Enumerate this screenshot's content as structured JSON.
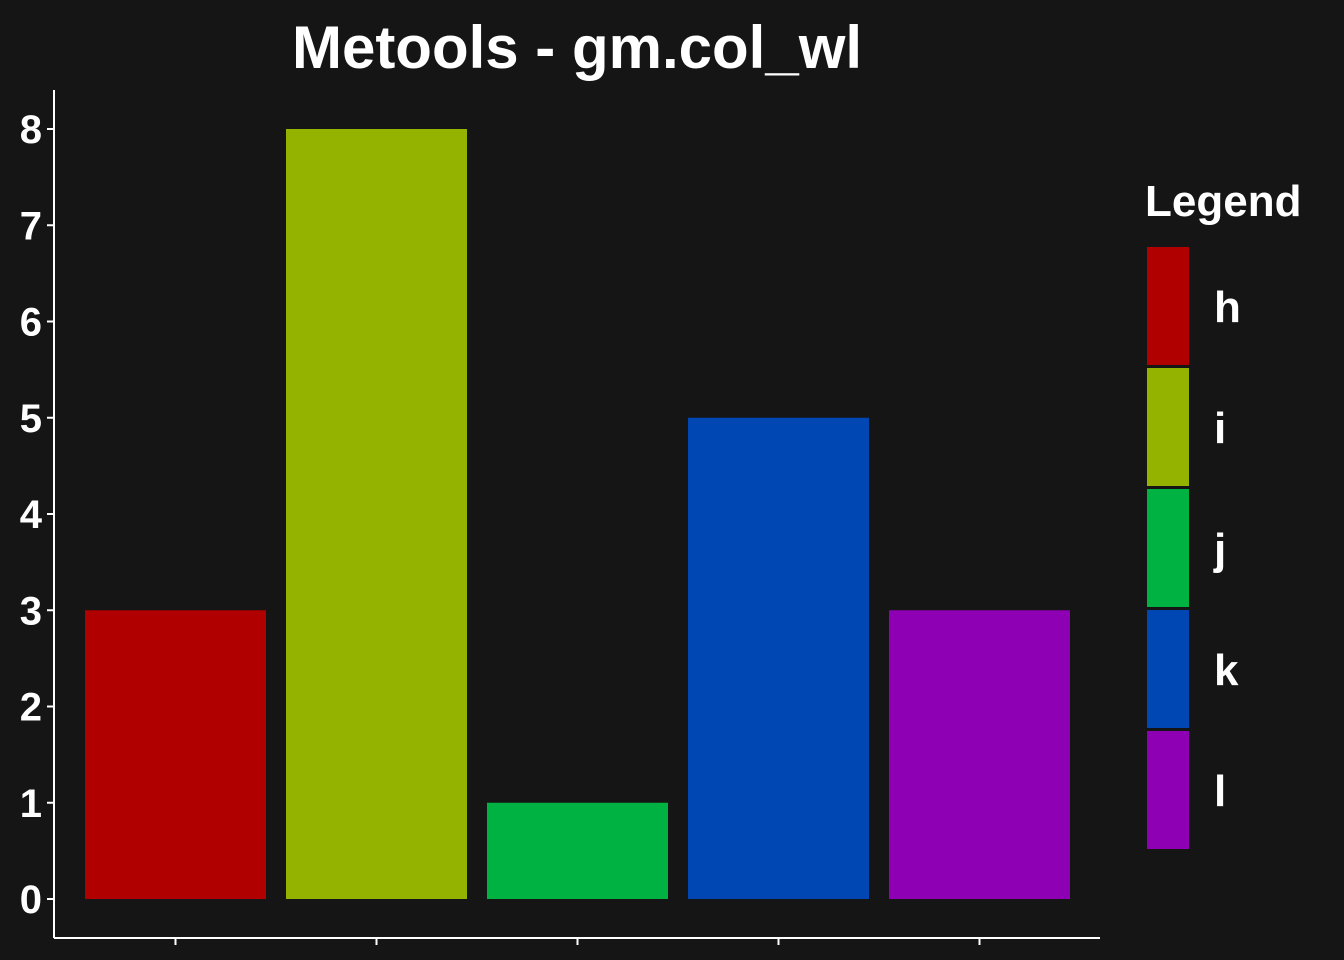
{
  "chart_data": {
    "type": "bar",
    "title": "Metools - gm.col_wl",
    "categories": [
      "h",
      "i",
      "j",
      "k",
      "l"
    ],
    "values": [
      3,
      8,
      1,
      5,
      3
    ],
    "colors": [
      "#b00000",
      "#93b300",
      "#00b242",
      "#0047b3",
      "#8e00b3"
    ],
    "xlabel": "",
    "ylabel": "",
    "ylim": [
      0,
      8
    ],
    "yticks": [
      0,
      1,
      2,
      3,
      4,
      5,
      6,
      7,
      8
    ],
    "grid": false,
    "legend": {
      "title": "Legend",
      "placement": "right",
      "entries": [
        "h",
        "i",
        "j",
        "k",
        "l"
      ]
    },
    "background": "#151515",
    "text_color": "#ffffff"
  }
}
